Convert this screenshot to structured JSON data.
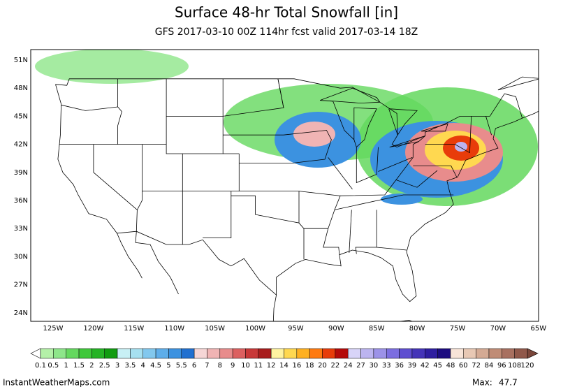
{
  "header": {
    "title": "Surface 48-hr Total Snowfall [in]",
    "subtitle": "GFS 2017-03-10 00Z 114hr fcst valid 2017-03-14 18Z"
  },
  "map": {
    "lat_labels": [
      "51N",
      "48N",
      "45N",
      "42N",
      "39N",
      "36N",
      "33N",
      "30N",
      "27N",
      "24N"
    ],
    "lon_labels": [
      "125W",
      "120W",
      "115W",
      "110W",
      "105W",
      "100W",
      "95W",
      "90W",
      "85W",
      "80W",
      "75W",
      "70W",
      "65W"
    ]
  },
  "colorbar": {
    "levels": [
      0.1,
      0.5,
      1,
      1.5,
      2,
      2.5,
      3,
      3.5,
      4,
      4.5,
      5,
      5.5,
      6,
      7,
      8,
      9,
      10,
      11,
      12,
      14,
      16,
      18,
      20,
      22,
      24,
      27,
      30,
      33,
      36,
      39,
      42,
      45,
      48,
      60,
      72,
      84,
      96,
      108,
      120
    ],
    "colors": [
      "#b4f0a8",
      "#8ee68a",
      "#64d85e",
      "#3fc83a",
      "#25b325",
      "#109c10",
      "#c8f0f5",
      "#a6e0f0",
      "#82c8ee",
      "#5eaeea",
      "#3c92e0",
      "#2070d0",
      "#f6d6d6",
      "#f0b4b4",
      "#e88c8c",
      "#dc6060",
      "#c83838",
      "#a81c1c",
      "#fff3a0",
      "#ffd850",
      "#ffb020",
      "#ff7a10",
      "#e83c0a",
      "#b40a0a",
      "#d8d4f8",
      "#bcb4f0",
      "#9c92e8",
      "#7c6ee0",
      "#5e4ed0",
      "#4434b8",
      "#2e1ea0",
      "#1c0c80",
      "#f8e4d8",
      "#e8c8b4",
      "#d4aa94",
      "#c08c76",
      "#a87060",
      "#90584a"
    ]
  },
  "footer": {
    "site": "InstantWeatherMaps.com",
    "max_label": "Max:",
    "max": 47.7
  }
}
